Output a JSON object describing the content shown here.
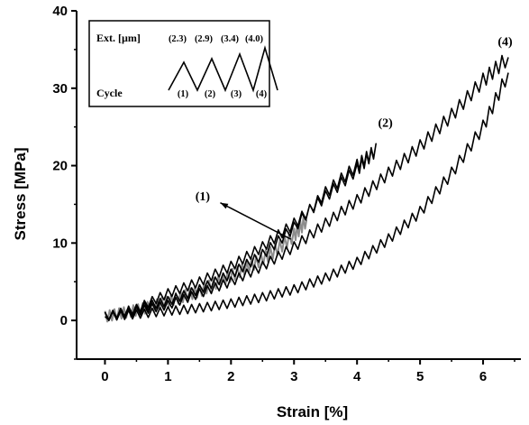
{
  "chart_data": {
    "type": "line",
    "xlabel": "Strain [%]",
    "ylabel": "Stress [MPa]",
    "xlim": [
      -0.45,
      6.6
    ],
    "ylim": [
      -5,
      40
    ],
    "x_ticks": [
      "0",
      "1",
      "2",
      "3",
      "4",
      "5",
      "6"
    ],
    "x_tick_values": [
      0,
      1,
      2,
      3,
      4,
      5,
      6
    ],
    "y_ticks": [
      "0",
      "10",
      "20",
      "30",
      "40"
    ],
    "y_tick_values": [
      0,
      10,
      20,
      30,
      40
    ],
    "grid": false,
    "series": [
      {
        "name": "(1)",
        "color": "#8c8c8c",
        "x": [
          0,
          0.3,
          0.6,
          0.9,
          1.2,
          1.5,
          1.8,
          2.1,
          2.4,
          2.7,
          3.0,
          3.2
        ],
        "y": [
          0.5,
          1,
          1.5,
          2.2,
          3,
          3.8,
          5,
          6.2,
          7.5,
          9,
          11,
          13
        ]
      },
      {
        "name": "(2)",
        "color": "#000000",
        "x": [
          0,
          0.5,
          1.0,
          1.5,
          2.0,
          2.5,
          3.0,
          3.5,
          4.0,
          4.3,
          4.0,
          3.5,
          3.0,
          2.5,
          2.0,
          1.5,
          1.0,
          0.5,
          0
        ],
        "y": [
          0.5,
          1.5,
          3.5,
          5,
          7,
          9.5,
          12.5,
          16,
          19.5,
          22,
          20,
          16.5,
          12,
          8.5,
          6,
          4,
          2.5,
          1.5,
          0.5
        ]
      },
      {
        "name": "(3)",
        "color": "#000000",
        "x": [
          0,
          0.5,
          1.0,
          1.5,
          2.0,
          2.5,
          3.0,
          3.5,
          4.0,
          4.5,
          5.0,
          5.5,
          6.0,
          6.4
        ],
        "y": [
          0.5,
          1.2,
          2,
          3.5,
          5,
          7,
          9.5,
          12.5,
          15.5,
          19,
          22.5,
          26.5,
          31,
          34
        ]
      },
      {
        "name": "(4)",
        "color": "#000000",
        "x": [
          0,
          0.5,
          1.0,
          1.5,
          2.0,
          2.5,
          3.0,
          3.5,
          4.0,
          4.5,
          5.0,
          5.5,
          6.0,
          6.4
        ],
        "y": [
          0.5,
          0.8,
          1.2,
          1.6,
          2.2,
          3,
          4,
          5.5,
          7.5,
          10.5,
          14,
          19,
          25,
          32
        ]
      }
    ],
    "annotations": [
      {
        "text": "(1)",
        "x": 1.55,
        "y": 15.5
      },
      {
        "text": "(2)",
        "x": 4.45,
        "y": 25
      },
      {
        "text": "(4)",
        "x": 6.35,
        "y": 35.5
      }
    ],
    "inset": {
      "ext_label": "Ext. [µm]",
      "ext_values": [
        "(2.3)",
        "(2.9)",
        "(3.4)",
        "(4.0)"
      ],
      "cycle_label": "Cycle",
      "cycles": [
        "(1)",
        "(2)",
        "(3)",
        "(4)"
      ]
    }
  }
}
